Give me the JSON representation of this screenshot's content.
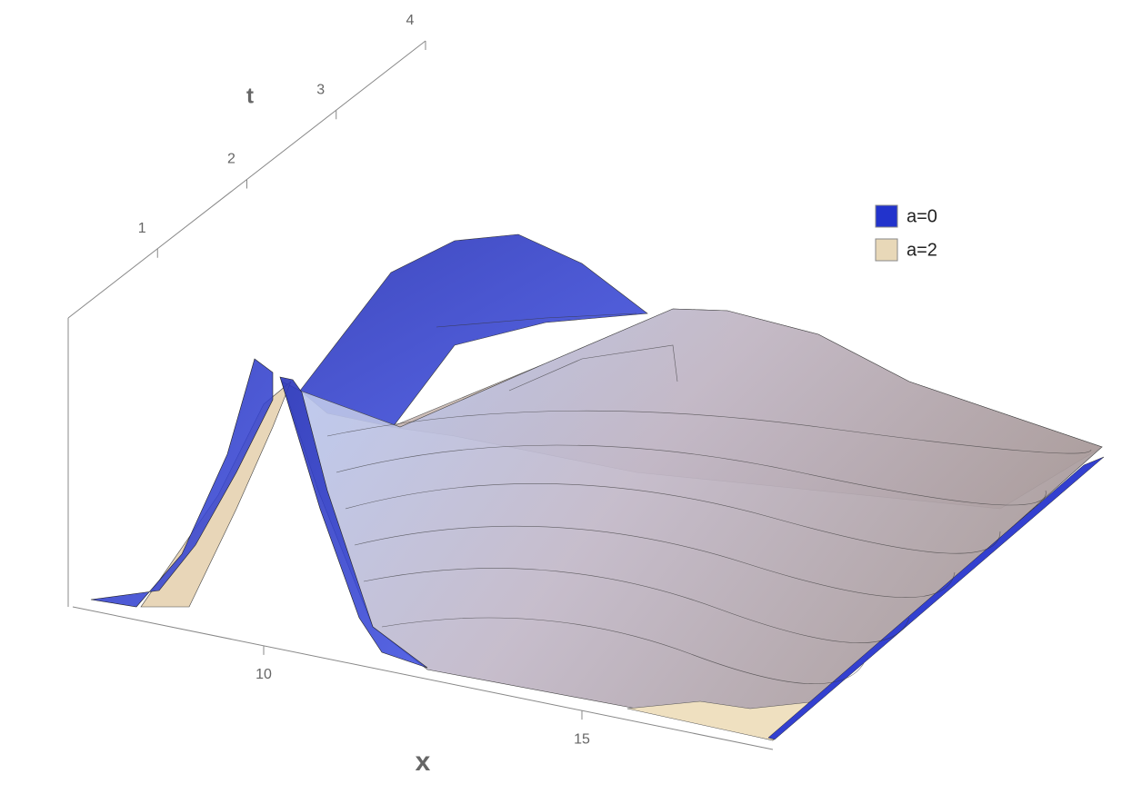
{
  "chart_data": {
    "type": "surface3d",
    "xlabel": "x",
    "tlabel": "t",
    "xlim": [
      7,
      18
    ],
    "xticks": [
      10,
      15
    ],
    "tlim": [
      0,
      4
    ],
    "tticks": [
      1,
      2,
      3,
      4
    ],
    "series": [
      {
        "name": "a=0",
        "color": "#2233cc"
      },
      {
        "name": "a=2",
        "color": "#e8d8b8"
      }
    ]
  }
}
